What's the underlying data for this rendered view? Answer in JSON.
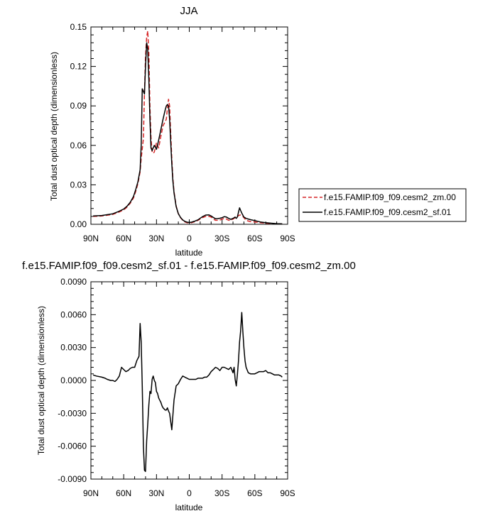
{
  "chart_data": [
    {
      "type": "line",
      "title": "JJA",
      "xlabel": "latitude",
      "ylabel": "Total dust optical depth (dimensionless)",
      "xlim": [
        90,
        -90
      ],
      "ylim": [
        0,
        0.15
      ],
      "xticks": [
        90,
        60,
        30,
        0,
        -30,
        -60,
        -90
      ],
      "xtick_labels": [
        "90N",
        "60N",
        "30N",
        "0",
        "30S",
        "60S",
        "90S"
      ],
      "yticks": [
        0,
        0.03,
        0.06,
        0.09,
        0.12,
        0.15
      ],
      "ytick_labels": [
        "0.00",
        "0.03",
        "0.06",
        "0.09",
        "0.12",
        "0.15"
      ],
      "legend_position": "right",
      "series": [
        {
          "name": "f.e15.FAMIP.f09_f09.cesm2_zm.00",
          "color": "#d62728",
          "dash": "dashed",
          "x": [
            88,
            80,
            70,
            65,
            60,
            57,
            54,
            51,
            49,
            47,
            45,
            44,
            42,
            41,
            40,
            39,
            38,
            37,
            36,
            35,
            34,
            33,
            32,
            30,
            28,
            26,
            24,
            22,
            21,
            20,
            19,
            18,
            17,
            16,
            15,
            14,
            12,
            10,
            8,
            6,
            4,
            2,
            0,
            -2,
            -5,
            -8,
            -12,
            -15,
            -18,
            -20,
            -22,
            -24,
            -26,
            -28,
            -30,
            -32,
            -34,
            -36,
            -38,
            -40,
            -42,
            -43,
            -44,
            -45,
            -46,
            -47,
            -48,
            -49,
            -50,
            -52,
            -54,
            -56,
            -60,
            -65,
            -70,
            -75,
            -80,
            -85
          ],
          "y": [
            0.006,
            0.0063,
            0.0075,
            0.009,
            0.011,
            0.013,
            0.016,
            0.02,
            0.025,
            0.031,
            0.04,
            0.05,
            0.065,
            0.1,
            0.128,
            0.142,
            0.147,
            0.13,
            0.09,
            0.066,
            0.055,
            0.054,
            0.055,
            0.062,
            0.058,
            0.067,
            0.075,
            0.078,
            0.08,
            0.088,
            0.095,
            0.09,
            0.07,
            0.05,
            0.035,
            0.025,
            0.014,
            0.008,
            0.005,
            0.003,
            0.0018,
            0.0012,
            0.001,
            0.0012,
            0.002,
            0.003,
            0.005,
            0.006,
            0.006,
            0.0055,
            0.004,
            0.003,
            0.003,
            0.0032,
            0.004,
            0.0045,
            0.004,
            0.003,
            0.003,
            0.004,
            0.005,
            0.005,
            0.006,
            0.0065,
            0.007,
            0.007,
            0.0065,
            0.006,
            0.005,
            0.003,
            0.0025,
            0.002,
            0.0018,
            0.0012,
            0.0008,
            0.0005,
            0.0003,
            0.0002
          ]
        },
        {
          "name": "f.e15.FAMIP.f09_f09.cesm2_sf.01",
          "color": "#000000",
          "dash": "solid",
          "x": [
            88,
            80,
            70,
            65,
            60,
            57,
            54,
            51,
            49,
            47,
            45,
            44,
            43,
            42,
            41,
            40,
            39,
            38,
            37,
            36,
            35,
            34,
            33,
            32,
            30,
            28,
            26,
            24,
            22,
            21,
            20,
            19,
            18,
            17,
            16,
            15,
            14,
            12,
            10,
            8,
            6,
            4,
            2,
            0,
            -2,
            -5,
            -8,
            -12,
            -15,
            -18,
            -20,
            -22,
            -24,
            -26,
            -28,
            -30,
            -32,
            -34,
            -36,
            -38,
            -40,
            -42,
            -43,
            -44,
            -45,
            -46,
            -47,
            -48,
            -49,
            -50,
            -52,
            -54,
            -56,
            -60,
            -65,
            -70,
            -75,
            -80,
            -85
          ],
          "y": [
            0.0063,
            0.0067,
            0.008,
            0.0096,
            0.0116,
            0.0137,
            0.0167,
            0.0212,
            0.0264,
            0.0323,
            0.0415,
            0.06,
            0.103,
            0.101,
            0.099,
            0.12,
            0.138,
            0.133,
            0.11,
            0.08,
            0.058,
            0.056,
            0.058,
            0.06,
            0.057,
            0.064,
            0.072,
            0.08,
            0.087,
            0.09,
            0.091,
            0.09,
            0.08,
            0.063,
            0.046,
            0.033,
            0.024,
            0.0135,
            0.0081,
            0.0052,
            0.0033,
            0.0022,
            0.0016,
            0.0014,
            0.0016,
            0.0024,
            0.0034,
            0.0058,
            0.007,
            0.0071,
            0.0063,
            0.0052,
            0.0042,
            0.0043,
            0.0046,
            0.005,
            0.0058,
            0.0055,
            0.0045,
            0.0038,
            0.0045,
            0.0055,
            0.0045,
            0.0055,
            0.0092,
            0.0125,
            0.0105,
            0.0085,
            0.007,
            0.0055,
            0.0045,
            0.004,
            0.0035,
            0.0028,
            0.0018,
            0.0012,
            0.0008,
            0.0005,
            0.0003
          ]
        }
      ]
    },
    {
      "type": "line",
      "title": "f.e15.FAMIP.f09_f09.cesm2_sf.01 - f.e15.FAMIP.f09_f09.cesm2_zm.00",
      "xlabel": "latitude",
      "ylabel": "Total dust optical depth (dimensionless)",
      "xlim": [
        90,
        -90
      ],
      "ylim": [
        -0.009,
        0.009
      ],
      "xticks": [
        90,
        60,
        30,
        0,
        -30,
        -60,
        -90
      ],
      "xtick_labels": [
        "90N",
        "60N",
        "30N",
        "0",
        "30S",
        "60S",
        "90S"
      ],
      "yticks": [
        -0.009,
        -0.006,
        -0.003,
        0,
        0.003,
        0.006,
        0.009
      ],
      "ytick_labels": [
        "-0.0090",
        "-0.0060",
        "-0.0030",
        "0.0000",
        "0.0030",
        "0.0060",
        "0.0090"
      ],
      "series": [
        {
          "color": "#000000",
          "dash": "solid",
          "x": [
            88,
            85,
            80,
            77,
            75,
            72,
            70,
            68,
            66,
            64,
            62,
            60,
            58,
            56,
            54,
            52,
            50,
            48,
            46,
            45,
            44,
            43,
            42,
            41,
            40,
            39,
            38,
            37,
            36,
            35,
            34,
            33,
            32,
            31,
            30,
            29,
            28,
            27,
            26,
            25,
            24,
            23,
            22,
            21,
            20,
            19,
            18,
            16,
            14,
            12,
            10,
            8,
            6,
            4,
            2,
            0,
            -2,
            -4,
            -6,
            -8,
            -10,
            -12,
            -14,
            -16,
            -18,
            -20,
            -22,
            -24,
            -26,
            -28,
            -30,
            -32,
            -34,
            -36,
            -38,
            -40,
            -41,
            -42,
            -43,
            -44,
            -45,
            -46,
            -47,
            -48,
            -49,
            -50,
            -51,
            -52,
            -54,
            -56,
            -58,
            -60,
            -62,
            -64,
            -66,
            -68,
            -70,
            -72,
            -74,
            -76,
            -78,
            -80,
            -82,
            -84,
            -85
          ],
          "y": [
            0.0005,
            0.0004,
            0.0003,
            0.0002,
            0.0001,
            0.0,
            0.0,
            -0.0001,
            0.0001,
            0.0004,
            0.0012,
            0.001,
            0.0008,
            0.0009,
            0.0011,
            0.0012,
            0.0012,
            0.0018,
            0.0022,
            0.0052,
            0.0035,
            -0.0005,
            -0.006,
            -0.0082,
            -0.0083,
            -0.0055,
            -0.004,
            -0.0022,
            -0.001,
            -0.0012,
            0.0001,
            0.0004,
            0.0,
            -0.0002,
            -0.001,
            -0.0012,
            -0.0016,
            -0.0018,
            -0.002,
            -0.0023,
            -0.0025,
            -0.0026,
            -0.0027,
            -0.0027,
            -0.0025,
            -0.0028,
            -0.003,
            -0.0045,
            -0.0018,
            -0.0005,
            -0.0003,
            0.0001,
            0.0004,
            0.0003,
            0.0002,
            0.0001,
            0.0001,
            0.0001,
            0.0001,
            0.0002,
            0.0002,
            0.0002,
            0.0003,
            0.0003,
            0.0005,
            0.0008,
            0.001,
            0.0012,
            0.0011,
            0.0009,
            0.0012,
            0.0012,
            0.0011,
            0.001,
            0.0012,
            0.0007,
            0.0012,
            0.0001,
            -0.0005,
            0.0005,
            0.0018,
            0.0035,
            0.0045,
            0.0062,
            0.0045,
            0.003,
            0.0018,
            0.0012,
            0.0007,
            0.0006,
            0.0006,
            0.0006,
            0.0007,
            0.0008,
            0.0008,
            0.0008,
            0.0009,
            0.0007,
            0.0007,
            0.0006,
            0.0005,
            0.0005,
            0.0005,
            0.0004,
            0.0003
          ]
        }
      ]
    }
  ]
}
